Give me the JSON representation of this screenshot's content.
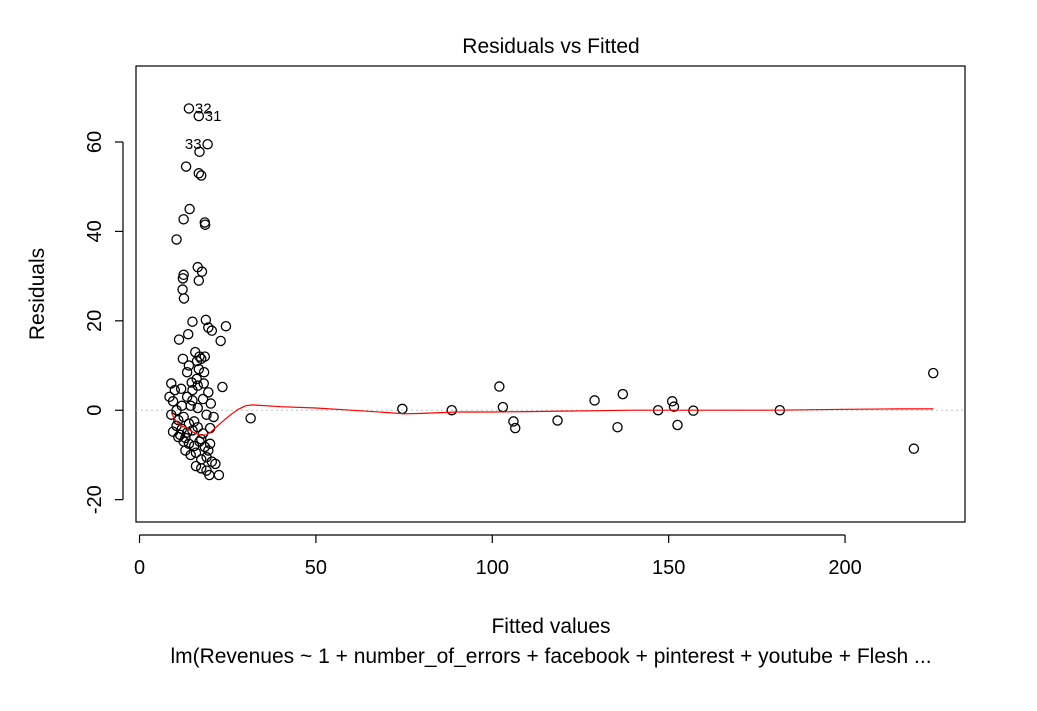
{
  "chart_data": {
    "type": "scatter",
    "title": "Residuals vs Fitted",
    "xlabel": "Fitted values",
    "ylabel": "Residuals",
    "caption": "lm(Revenues ~ 1 + number_of_errors + facebook + pinterest + youtube + Flesh ...",
    "xlim": [
      -1,
      234
    ],
    "ylim": [
      -25,
      77
    ],
    "x_ticks": [
      0,
      50,
      100,
      150,
      200
    ],
    "y_ticks": [
      -20,
      0,
      20,
      40,
      60
    ],
    "grid": false,
    "reference_line": {
      "y": 0,
      "style": "dotted",
      "color": "#bfbfbf"
    },
    "colors": {
      "points": "#000000",
      "smoother": "#ff0000",
      "reference": "#bfbfbf"
    },
    "labeled_points": [
      {
        "label": "32",
        "x": 14,
        "y": 67.5
      },
      {
        "label": "31",
        "x": 16.8,
        "y": 65.8
      },
      {
        "label": "33",
        "x": 19.3,
        "y": 59.5
      }
    ],
    "points": [
      [
        14,
        67.5
      ],
      [
        16.8,
        65.8
      ],
      [
        19.3,
        59.5
      ],
      [
        17,
        57.8
      ],
      [
        13.2,
        54.5
      ],
      [
        16.8,
        53
      ],
      [
        17.5,
        52.5
      ],
      [
        14.2,
        45
      ],
      [
        12.5,
        42.7
      ],
      [
        18.5,
        42
      ],
      [
        18.6,
        41.5
      ],
      [
        10.5,
        38.2
      ],
      [
        16.5,
        32
      ],
      [
        17.7,
        31
      ],
      [
        12.5,
        30.3
      ],
      [
        12.3,
        29.5
      ],
      [
        16.8,
        29
      ],
      [
        12.2,
        27
      ],
      [
        12.6,
        25
      ],
      [
        18.8,
        20.2
      ],
      [
        15,
        19.8
      ],
      [
        19.5,
        18.5
      ],
      [
        24.5,
        18.8
      ],
      [
        20.5,
        17.8
      ],
      [
        13.8,
        17
      ],
      [
        11.2,
        15.8
      ],
      [
        23,
        15.5
      ],
      [
        15.8,
        13
      ],
      [
        17,
        12
      ],
      [
        18.5,
        12
      ],
      [
        12.3,
        11.5
      ],
      [
        16.3,
        11
      ],
      [
        17.5,
        11.5
      ],
      [
        14,
        10
      ],
      [
        16.8,
        9.2
      ],
      [
        13.5,
        8.5
      ],
      [
        16.2,
        7
      ],
      [
        18.2,
        6
      ],
      [
        9,
        6
      ],
      [
        11.8,
        4.8
      ],
      [
        15,
        4.5
      ],
      [
        19.5,
        4
      ],
      [
        23.5,
        5.2
      ],
      [
        10,
        4.5
      ],
      [
        13.5,
        3
      ],
      [
        8.5,
        3
      ],
      [
        9.5,
        2
      ],
      [
        15,
        2.2
      ],
      [
        18,
        2.5
      ],
      [
        9,
        -1
      ],
      [
        10.5,
        0
      ],
      [
        12.5,
        -1.5
      ],
      [
        14.5,
        1
      ],
      [
        16.5,
        0.5
      ],
      [
        19,
        -1
      ],
      [
        21,
        -1.5
      ],
      [
        10.5,
        -3.5
      ],
      [
        12,
        -4.2
      ],
      [
        13.5,
        -5
      ],
      [
        15,
        -4.5
      ],
      [
        16.5,
        -3.8
      ],
      [
        18,
        -5.2
      ],
      [
        20,
        -4
      ],
      [
        11,
        -6
      ],
      [
        12.5,
        -7
      ],
      [
        14,
        -7.5
      ],
      [
        15.5,
        -8
      ],
      [
        17,
        -7
      ],
      [
        18.5,
        -8.2
      ],
      [
        20,
        -7.5
      ],
      [
        13,
        -9
      ],
      [
        14.5,
        -10
      ],
      [
        16,
        -9.5
      ],
      [
        17.5,
        -11
      ],
      [
        19,
        -10.5
      ],
      [
        20.5,
        -11.5
      ],
      [
        16,
        -12.5
      ],
      [
        17.5,
        -13
      ],
      [
        19,
        -13.5
      ],
      [
        19.8,
        -14.5
      ],
      [
        22.5,
        -14.5
      ],
      [
        31.5,
        -1.8
      ],
      [
        9.5,
        -4.8
      ],
      [
        11.5,
        -5.5
      ],
      [
        13,
        -6.2
      ],
      [
        14,
        -3
      ],
      [
        15.5,
        -2.5
      ],
      [
        17.5,
        -6.5
      ],
      [
        19.5,
        -9
      ],
      [
        21.5,
        -12
      ],
      [
        16.5,
        5.5
      ],
      [
        18.3,
        8.5
      ],
      [
        14.8,
        6.2
      ],
      [
        20.2,
        1.5
      ],
      [
        12,
        1
      ],
      [
        11,
        -2.2
      ],
      [
        74.5,
        0.3
      ],
      [
        88.5,
        0
      ],
      [
        102,
        5.3
      ],
      [
        103,
        0.7
      ],
      [
        106,
        -2.5
      ],
      [
        106.5,
        -4
      ],
      [
        118.5,
        -2.3
      ],
      [
        129,
        2.2
      ],
      [
        135.5,
        -3.8
      ],
      [
        137,
        3.6
      ],
      [
        147,
        0
      ],
      [
        151,
        2
      ],
      [
        151.5,
        0.8
      ],
      [
        152.5,
        -3.3
      ],
      [
        157,
        -0.1
      ],
      [
        181.5,
        0
      ],
      [
        219.5,
        -8.6
      ],
      [
        225,
        8.3
      ]
    ],
    "smoother": [
      [
        9,
        -0.5
      ],
      [
        10,
        -2
      ],
      [
        11,
        -3
      ],
      [
        12,
        -3.6
      ],
      [
        13,
        -3.8
      ],
      [
        14,
        -4.3
      ],
      [
        15,
        -4.8
      ],
      [
        16,
        -5.2
      ],
      [
        17,
        -5.5
      ],
      [
        18,
        -5.6
      ],
      [
        19,
        -5.5
      ],
      [
        20,
        -5
      ],
      [
        22,
        -3.6
      ],
      [
        24,
        -2.2
      ],
      [
        26,
        -0.9
      ],
      [
        28,
        0.2
      ],
      [
        30,
        1
      ],
      [
        32,
        1.2
      ],
      [
        40,
        0.8
      ],
      [
        50,
        0.5
      ],
      [
        60,
        0
      ],
      [
        70,
        -0.5
      ],
      [
        75,
        -0.8
      ],
      [
        80,
        -0.7
      ],
      [
        90,
        -0.4
      ],
      [
        100,
        -0.4
      ],
      [
        110,
        -0.3
      ],
      [
        120,
        -0.2
      ],
      [
        130,
        -0.1
      ],
      [
        140,
        0
      ],
      [
        150,
        0
      ],
      [
        160,
        0
      ],
      [
        180,
        0
      ],
      [
        200,
        0.2
      ],
      [
        215,
        0.3
      ],
      [
        225,
        0.3
      ]
    ]
  }
}
